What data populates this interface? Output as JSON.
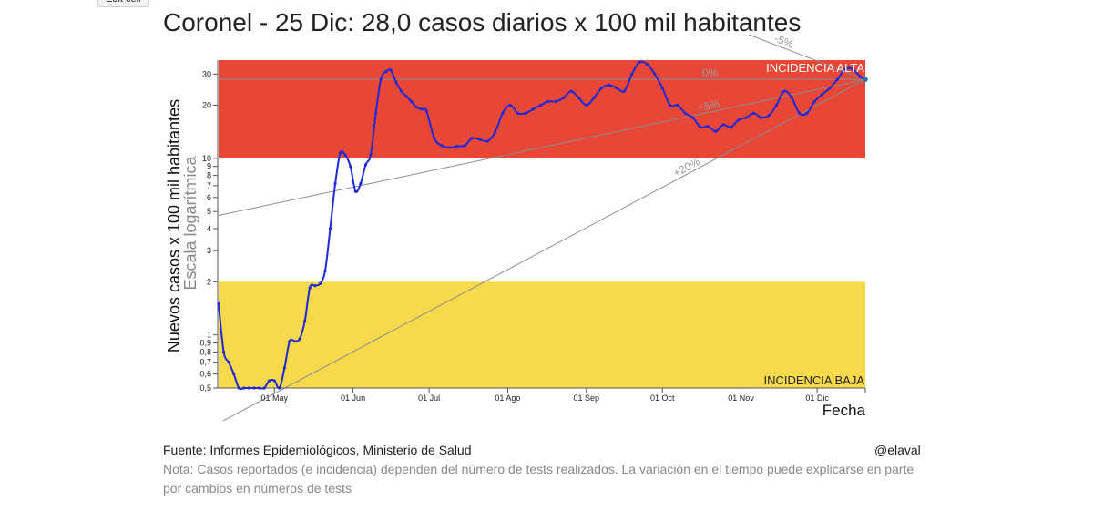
{
  "toolbar": {
    "edit_label": "Edit cell"
  },
  "title": "Coronel - 25 Dic: 28,0 casos diarios x 100 mil habitantes",
  "footer": {
    "source": "Fuente: Informes Epidemiológicos, Ministerio de Salud",
    "handle": "@elaval",
    "note": "Nota: Casos reportados (e incidencia) dependen del número de tests realizados. La variación en el tiempo puede explicarse en parte por cambios en números de tests"
  },
  "colors": {
    "high": "#e84636",
    "low": "#f7d94c",
    "line": "#1e28d8",
    "ref": "#8c8c8c"
  },
  "chart_data": {
    "type": "line",
    "scale": "log",
    "ylabel": "Nuevos casos x 100 mil habitantes",
    "ylabel2": "Escala logarítmica",
    "xlabel": "Fecha",
    "ylim": [
      0.5,
      36
    ],
    "xlim": [
      0,
      255
    ],
    "y_ticks": [
      {
        "v": 0.5,
        "label": "0,5"
      },
      {
        "v": 0.6,
        "label": "0,6"
      },
      {
        "v": 0.7,
        "label": "0,7"
      },
      {
        "v": 0.8,
        "label": "0,8"
      },
      {
        "v": 0.9,
        "label": "0,9"
      },
      {
        "v": 1,
        "label": "1"
      },
      {
        "v": 2,
        "label": "2"
      },
      {
        "v": 3,
        "label": "3"
      },
      {
        "v": 4,
        "label": "4"
      },
      {
        "v": 5,
        "label": "5"
      },
      {
        "v": 6,
        "label": "6"
      },
      {
        "v": 7,
        "label": "7"
      },
      {
        "v": 8,
        "label": "8"
      },
      {
        "v": 9,
        "label": "9"
      },
      {
        "v": 10,
        "label": "10"
      },
      {
        "v": 20,
        "label": "20"
      },
      {
        "v": 30,
        "label": "30"
      }
    ],
    "x_ticks": [
      {
        "day": 22,
        "label": "01 May"
      },
      {
        "day": 53,
        "label": "01 Jun"
      },
      {
        "day": 83,
        "label": "01 Jul"
      },
      {
        "day": 114,
        "label": "01 Ago"
      },
      {
        "day": 145,
        "label": "01 Sep"
      },
      {
        "day": 175,
        "label": "01 Oct"
      },
      {
        "day": 206,
        "label": "01 Nov"
      },
      {
        "day": 236,
        "label": "01 Dic"
      }
    ],
    "bands": [
      {
        "name": "high",
        "from": 10,
        "to": 36,
        "label": "INCIDENCIA ALTA"
      },
      {
        "name": "low",
        "from": 0.5,
        "to": 2,
        "label": "INCIDENCIA BAJA"
      }
    ],
    "reference_lines": [
      {
        "label": "0%",
        "x0": 0,
        "y0": 28.0
      },
      {
        "label": "+5%",
        "x0": 0,
        "y0": 4.75
      },
      {
        "label": "+20%",
        "x0": -60,
        "y0": 0.11
      },
      {
        "label": "-5%",
        "x0": 195,
        "y0": 60
      }
    ],
    "series": [
      {
        "name": "Coronel",
        "x": [
          0,
          2,
          4,
          6,
          8,
          10,
          12,
          14,
          16,
          18,
          20,
          22,
          24,
          26,
          28,
          30,
          32,
          34,
          36,
          38,
          40,
          42,
          44,
          46,
          48,
          50,
          52,
          54,
          56,
          58,
          60,
          62,
          64,
          66,
          68,
          70,
          72,
          74,
          76,
          78,
          80,
          82,
          85,
          88,
          91,
          94,
          97,
          100,
          103,
          106,
          109,
          112,
          115,
          118,
          121,
          124,
          127,
          130,
          133,
          136,
          139,
          142,
          145,
          148,
          151,
          154,
          157,
          160,
          163,
          166,
          169,
          172,
          175,
          178,
          181,
          184,
          187,
          190,
          193,
          196,
          199,
          202,
          205,
          208,
          211,
          214,
          217,
          220,
          223,
          226,
          229,
          232,
          235,
          238,
          241,
          244,
          247,
          250,
          253,
          255
        ],
        "y": [
          1.5,
          0.8,
          0.7,
          0.6,
          0.5,
          0.5,
          0.5,
          0.5,
          0.5,
          0.5,
          0.55,
          0.55,
          0.5,
          0.65,
          0.92,
          0.92,
          0.95,
          1.2,
          1.85,
          1.9,
          1.95,
          2.3,
          4.0,
          7.2,
          10.7,
          10.4,
          9.0,
          6.5,
          7.2,
          9.2,
          10.5,
          18,
          28,
          31,
          31.5,
          27,
          24,
          22.5,
          21,
          19.5,
          19,
          18.5,
          13,
          11.8,
          11.5,
          11.7,
          11.8,
          13,
          12.8,
          12.5,
          14,
          18,
          20,
          18,
          18,
          19,
          20,
          21,
          21,
          22,
          24,
          22,
          20,
          22,
          25,
          26,
          25,
          24,
          30,
          35,
          34,
          30,
          25,
          20,
          20,
          18,
          17,
          15,
          15.2,
          14.2,
          15.5,
          15.0,
          16.5,
          17,
          18,
          17,
          17.5,
          20,
          24,
          22,
          18,
          18,
          21,
          23,
          25,
          28,
          32,
          32,
          29,
          28
        ]
      }
    ]
  }
}
